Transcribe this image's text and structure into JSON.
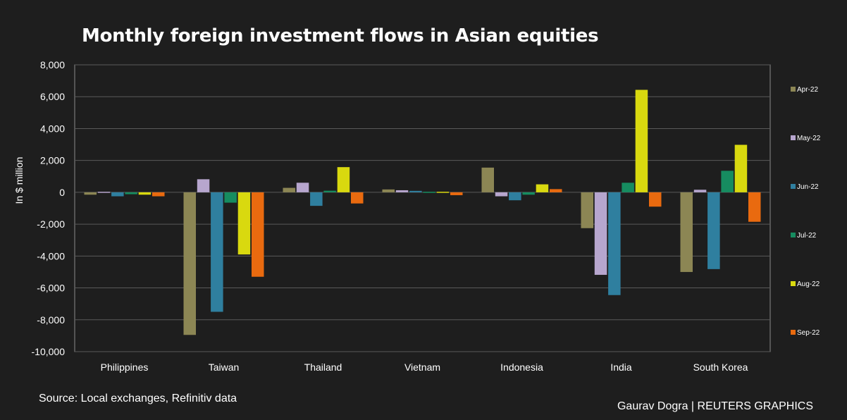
{
  "title": "Monthly foreign investment flows in Asian equities",
  "source": "Source: Local exchanges, Refinitiv data",
  "credit": "Gaurav Dogra | REUTERS GRAPHICS",
  "chart_data": {
    "type": "bar",
    "title": "Monthly foreign investment flows in Asian equities",
    "ylabel": "In $ million",
    "xlabel": "",
    "ylim": [
      -10000,
      8000
    ],
    "yticks": [
      8000,
      6000,
      4000,
      2000,
      0,
      -2000,
      -4000,
      -6000,
      -8000,
      -10000
    ],
    "ytick_labels": [
      "8,000",
      "6,000",
      "4,000",
      "2,000",
      "0",
      "-2,000",
      "-4,000",
      "-6,000",
      "-8,000",
      "-10,000"
    ],
    "grid": true,
    "legend_position": "right",
    "categories": [
      "Philippines",
      "Taiwan",
      "Thailand",
      "Vietnam",
      "Indonesia",
      "India",
      "South Korea"
    ],
    "series": [
      {
        "name": "Apr-22",
        "color": "#8c8654",
        "values": [
          -150,
          -8950,
          280,
          180,
          1550,
          -2250,
          -5000
        ]
      },
      {
        "name": "May-22",
        "color": "#b7a6ce",
        "values": [
          -60,
          820,
          600,
          130,
          -250,
          -5180,
          160
        ]
      },
      {
        "name": "Jun-22",
        "color": "#2f7f9f",
        "values": [
          -250,
          -7500,
          -850,
          90,
          -500,
          -6450,
          -4820
        ]
      },
      {
        "name": "Jul-22",
        "color": "#168c60",
        "values": [
          -120,
          -650,
          100,
          -50,
          -150,
          600,
          1350
        ]
      },
      {
        "name": "Aug-22",
        "color": "#d9d90f",
        "values": [
          -150,
          -3900,
          1580,
          0,
          500,
          6430,
          2980
        ]
      },
      {
        "name": "Sep-22",
        "color": "#e96a0f",
        "values": [
          -250,
          -5300,
          -700,
          -180,
          200,
          -900,
          -1850
        ]
      }
    ]
  }
}
